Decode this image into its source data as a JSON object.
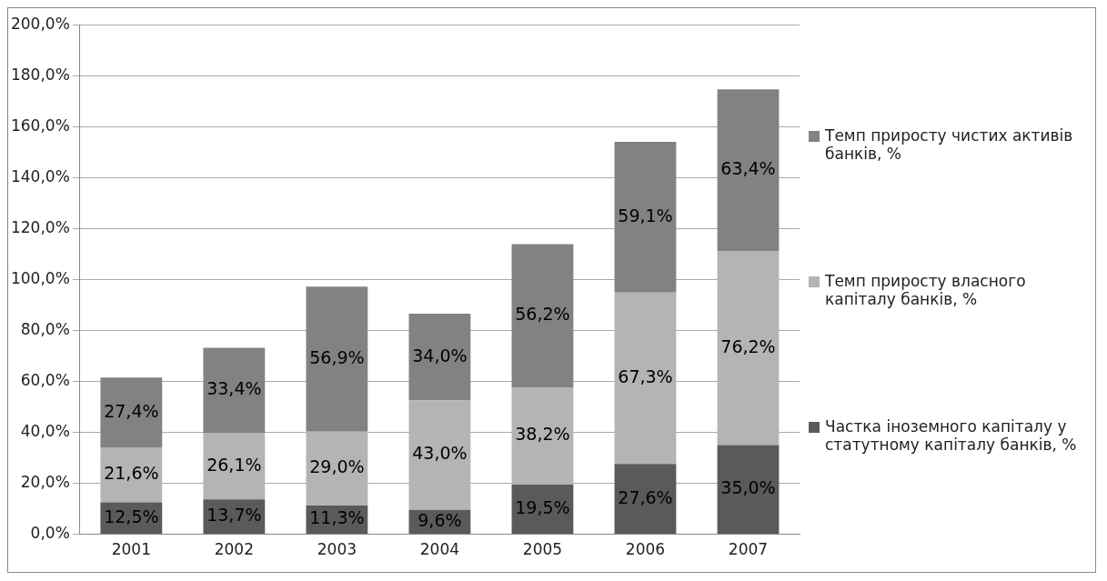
{
  "chart_data": {
    "type": "bar",
    "stacked": true,
    "categories": [
      "2001",
      "2002",
      "2003",
      "2004",
      "2005",
      "2006",
      "2007"
    ],
    "series": [
      {
        "name": "Частка іноземного капіталу у статутному капіталу банків, %",
        "color": "#5a5a5a",
        "values": [
          12.5,
          13.7,
          11.3,
          9.6,
          19.5,
          27.6,
          35.0
        ],
        "value_labels": [
          "12,5%",
          "13,7%",
          "11,3%",
          "9,6%",
          "19,5%",
          "27,6%",
          "35,0%"
        ]
      },
      {
        "name": "Темп приросту власного капіталу банків, %",
        "color": "#b4b4b4",
        "values": [
          21.6,
          26.1,
          29.0,
          43.0,
          38.2,
          67.3,
          76.2
        ],
        "value_labels": [
          "21,6%",
          "26,1%",
          "29,0%",
          "43,0%",
          "38,2%",
          "67,3%",
          "76,2%"
        ]
      },
      {
        "name": "Темп приросту чистих активів банків, %",
        "color": "#828282",
        "values": [
          27.4,
          33.4,
          56.9,
          34.0,
          56.2,
          59.1,
          63.4
        ],
        "value_labels": [
          "27,4%",
          "33,4%",
          "56,9%",
          "34,0%",
          "56,2%",
          "59,1%",
          "63,4%"
        ]
      }
    ],
    "ylim": [
      0,
      200
    ],
    "yticks": [
      {
        "value": 0,
        "label": "0,0%"
      },
      {
        "value": 20,
        "label": "20,0%"
      },
      {
        "value": 40,
        "label": "40,0%"
      },
      {
        "value": 60,
        "label": "60,0%"
      },
      {
        "value": 80,
        "label": "80,0%"
      },
      {
        "value": 100,
        "label": "100,0%"
      },
      {
        "value": 120,
        "label": "120,0%"
      },
      {
        "value": 140,
        "label": "140,0%"
      },
      {
        "value": 160,
        "label": "160,0%"
      },
      {
        "value": 180,
        "label": "180,0%"
      },
      {
        "value": 200,
        "label": "200,0%"
      }
    ],
    "grid": "y",
    "legend": "right"
  }
}
